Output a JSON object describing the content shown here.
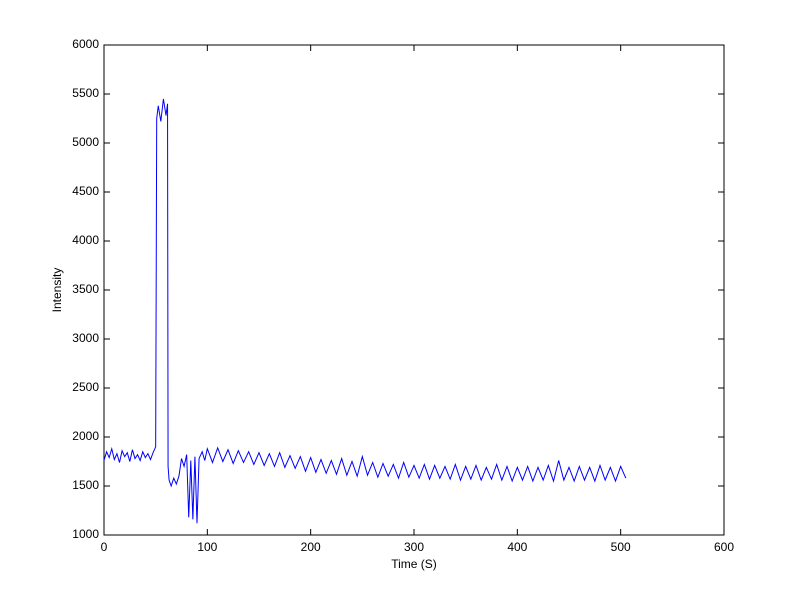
{
  "chart_data": {
    "type": "line",
    "xlabel": "Time (S)",
    "ylabel": "Intensity",
    "xlim": [
      0,
      600
    ],
    "xticks": [
      0,
      100,
      200,
      300,
      400,
      500,
      600
    ],
    "ylim": [
      1000,
      6000
    ],
    "yticks": [
      1000,
      1500,
      2000,
      2500,
      3000,
      3500,
      4000,
      4500,
      5000,
      5500,
      6000
    ],
    "series": [
      {
        "color": "#0000ff",
        "x": [
          0,
          2.5,
          5,
          7.5,
          10,
          12.5,
          15,
          17.5,
          20,
          22.5,
          25,
          27.5,
          30,
          32.5,
          35,
          37.5,
          40,
          42.5,
          45,
          47.5,
          50,
          51,
          52.5,
          55,
          57.5,
          60,
          61.5,
          62,
          63,
          65,
          67.5,
          70,
          72.5,
          75,
          77.5,
          80,
          82,
          84,
          86,
          88,
          90,
          92,
          95,
          97.5,
          100,
          105,
          110,
          115,
          120,
          125,
          130,
          135,
          140,
          145,
          150,
          155,
          160,
          165,
          170,
          175,
          180,
          185,
          190,
          195,
          200,
          205,
          210,
          215,
          220,
          225,
          230,
          235,
          240,
          245,
          250,
          255,
          260,
          265,
          270,
          275,
          280,
          285,
          290,
          295,
          300,
          305,
          310,
          315,
          320,
          325,
          330,
          335,
          340,
          345,
          350,
          355,
          360,
          365,
          370,
          375,
          380,
          385,
          390,
          395,
          400,
          405,
          410,
          415,
          420,
          425,
          430,
          435,
          440,
          445,
          450,
          455,
          460,
          465,
          470,
          475,
          480,
          485,
          490,
          495,
          500,
          505
        ],
        "values": [
          1760,
          1850,
          1790,
          1880,
          1770,
          1830,
          1740,
          1860,
          1800,
          1840,
          1750,
          1870,
          1780,
          1820,
          1760,
          1850,
          1790,
          1830,
          1770,
          1840,
          1900,
          5250,
          5380,
          5220,
          5450,
          5280,
          5400,
          1700,
          1560,
          1500,
          1580,
          1520,
          1600,
          1780,
          1700,
          1820,
          1180,
          1760,
          1160,
          1800,
          1120,
          1780,
          1850,
          1760,
          1880,
          1740,
          1890,
          1750,
          1870,
          1730,
          1860,
          1740,
          1850,
          1720,
          1840,
          1710,
          1830,
          1700,
          1840,
          1690,
          1810,
          1680,
          1800,
          1650,
          1790,
          1640,
          1770,
          1630,
          1760,
          1620,
          1780,
          1610,
          1750,
          1600,
          1800,
          1610,
          1740,
          1590,
          1730,
          1600,
          1720,
          1580,
          1740,
          1590,
          1710,
          1580,
          1720,
          1570,
          1710,
          1580,
          1700,
          1570,
          1720,
          1560,
          1700,
          1570,
          1710,
          1560,
          1690,
          1570,
          1720,
          1560,
          1700,
          1550,
          1690,
          1560,
          1700,
          1550,
          1690,
          1560,
          1710,
          1550,
          1760,
          1560,
          1690,
          1550,
          1700,
          1560,
          1690,
          1550,
          1710,
          1560,
          1690,
          1550,
          1700,
          1580
        ]
      }
    ]
  }
}
